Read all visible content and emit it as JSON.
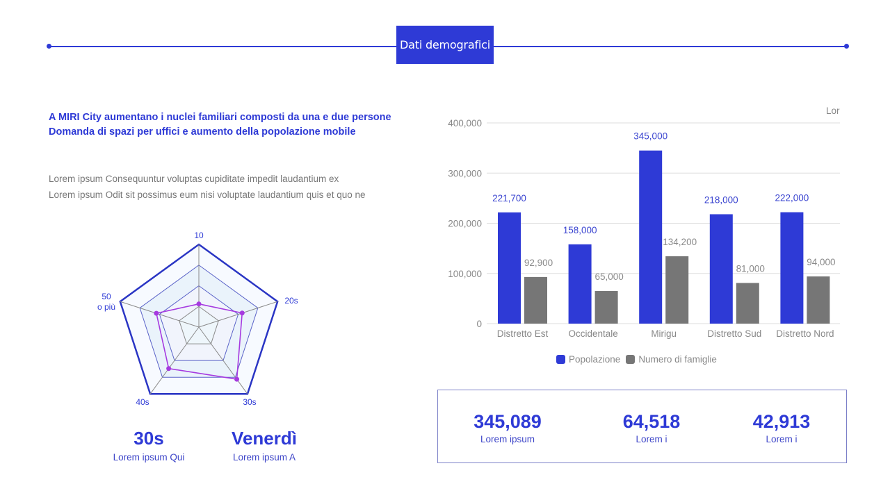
{
  "header": {
    "title": "Dati demografici",
    "accent": "#2e3ad6"
  },
  "headline": {
    "line1": "A MIRI City aumentano i nuclei familiari composti da una e due persone",
    "line2": "Domanda di spazi per uffici e aumento della popolazione mobile"
  },
  "body": {
    "line1": "Lorem ipsum Consequuntur voluptas cupiditate impedit laudantium ex",
    "line2": "Lorem ipsum Odit sit possimus eum nisi voluptate laudantium quis et quo ne"
  },
  "stats": [
    {
      "value": "30s",
      "label": "Lorem ipsum Qui"
    },
    {
      "value": "Venerdì",
      "label": "Lorem ipsum A"
    }
  ],
  "kpis": [
    {
      "value": "345,089",
      "label": "Lorem ipsum"
    },
    {
      "value": "64,518",
      "label": "Lorem i"
    },
    {
      "value": "42,913",
      "label": "Lorem i"
    }
  ],
  "chart_data": [
    {
      "type": "radar",
      "title": "",
      "axes": [
        "10",
        "20s",
        "30s",
        "40s",
        "50 o più"
      ],
      "range": [
        0,
        1
      ],
      "rings": 4,
      "series": [
        {
          "name": "",
          "values": [
            0.28,
            0.55,
            0.78,
            0.62,
            0.54
          ],
          "color": "#a63ae0"
        }
      ]
    },
    {
      "type": "bar",
      "title": "",
      "corner_label": "Lor",
      "categories": [
        "Distretto Est",
        "Occidentale",
        "Mirigu",
        "Distretto Sud",
        "Distretto Nord"
      ],
      "series": [
        {
          "name": "Popolazione",
          "values": [
            221700,
            158000,
            345000,
            218000,
            222000
          ],
          "labels": [
            "221,700",
            "158,000",
            "345,000",
            "218,000",
            "222,000"
          ],
          "color": "#2e3ad6"
        },
        {
          "name": "Numero di famiglie",
          "values": [
            92900,
            65000,
            134200,
            81000,
            94000
          ],
          "labels": [
            "92,900",
            "65,000",
            "134,200",
            "81,000",
            "94,000"
          ],
          "color": "#767676"
        }
      ],
      "yticks": [
        "0",
        "100,000",
        "200,000",
        "300,000",
        "400,000"
      ],
      "ylim": [
        0,
        400000
      ],
      "xlabel": "",
      "ylabel": "",
      "grid": true,
      "legend_position": "bottom"
    }
  ]
}
